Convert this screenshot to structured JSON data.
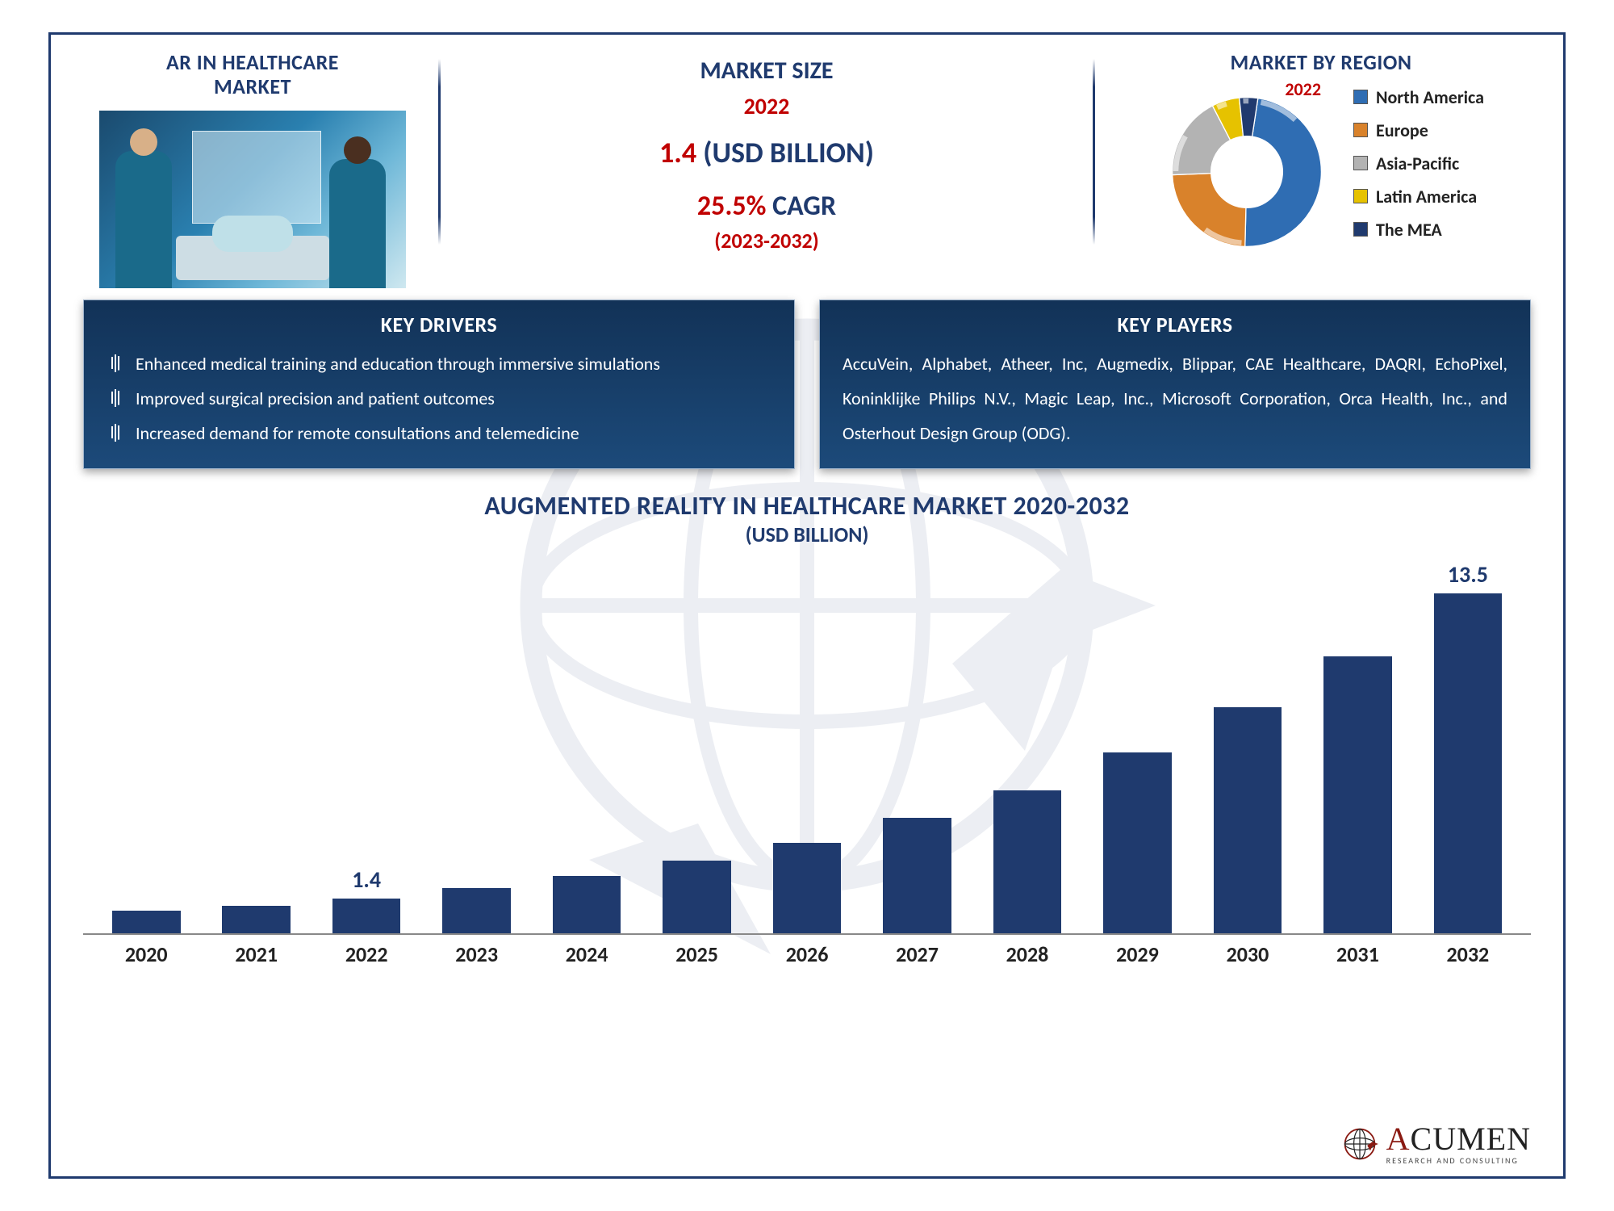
{
  "colors": {
    "frame_border": "#1f3a6e",
    "navy": "#1f3a6e",
    "red": "#c00000",
    "panel_top": "#123257",
    "panel_bottom": "#1c4a7a",
    "axis": "#888888",
    "white": "#ffffff",
    "black": "#222222"
  },
  "top": {
    "left_title_l1": "AR IN HEALTHCARE",
    "left_title_l2": "MARKET",
    "market_size_label": "MARKET SIZE",
    "year": "2022",
    "value_num": "1.4",
    "value_unit": " (USD BILLION)",
    "cagr_num": "25.5%",
    "cagr_word": " CAGR",
    "cagr_range": "(2023-2032)",
    "region_title": "MARKET BY REGION",
    "region_year": "2022"
  },
  "region_chart": {
    "type": "donut",
    "inner_radius_pct": 48,
    "background": "#ffffff",
    "slices": [
      {
        "label": "North America",
        "value": 48,
        "color": "#2f6db3"
      },
      {
        "label": "Europe",
        "value": 24,
        "color": "#d9822b"
      },
      {
        "label": "Asia-Pacific",
        "value": 18,
        "color": "#b3b3b3"
      },
      {
        "label": "Latin America",
        "value": 6,
        "color": "#e6c200"
      },
      {
        "label": "The MEA",
        "value": 4,
        "color": "#203a6e"
      }
    ]
  },
  "drivers": {
    "title": "KEY DRIVERS",
    "items": [
      "Enhanced medical training and education through immersive simulations",
      "Improved surgical precision and patient outcomes",
      "Increased demand for remote consultations and telemedicine"
    ]
  },
  "players": {
    "title": "KEY PLAYERS",
    "text": "AccuVein, Alphabet, Atheer, Inc, Augmedix, Blippar, CAE Healthcare, DAQRI, EchoPixel, Koninklijke Philips N.V., Magic Leap, Inc., Microsoft Corporation, Orca Health, Inc., and Osterhout Design Group (ODG)."
  },
  "bar_chart": {
    "type": "bar",
    "title_l1": "AUGMENTED REALITY IN HEALTHCARE MARKET 2020-2032",
    "title_l2": "(USD BILLION)",
    "bar_color": "#1f3a6e",
    "label_color": "#1f3a6e",
    "axis_color": "#888888",
    "bar_width_pct": 62,
    "label_fontsize": 28,
    "tick_fontsize": 26,
    "ymax": 13.5,
    "categories": [
      "2020",
      "2021",
      "2022",
      "2023",
      "2024",
      "2025",
      "2026",
      "2027",
      "2028",
      "2029",
      "2030",
      "2031",
      "2032"
    ],
    "values": [
      0.9,
      1.1,
      1.4,
      1.8,
      2.3,
      2.9,
      3.6,
      4.6,
      5.7,
      7.2,
      9.0,
      11.0,
      13.5
    ],
    "value_labels": {
      "2022": "1.4",
      "2032": "13.5"
    }
  },
  "brand": {
    "name_cap": "A",
    "name_rest": "CUMEN",
    "tagline": "RESEARCH AND CONSULTING",
    "globe_stroke": "#8a1a12"
  }
}
